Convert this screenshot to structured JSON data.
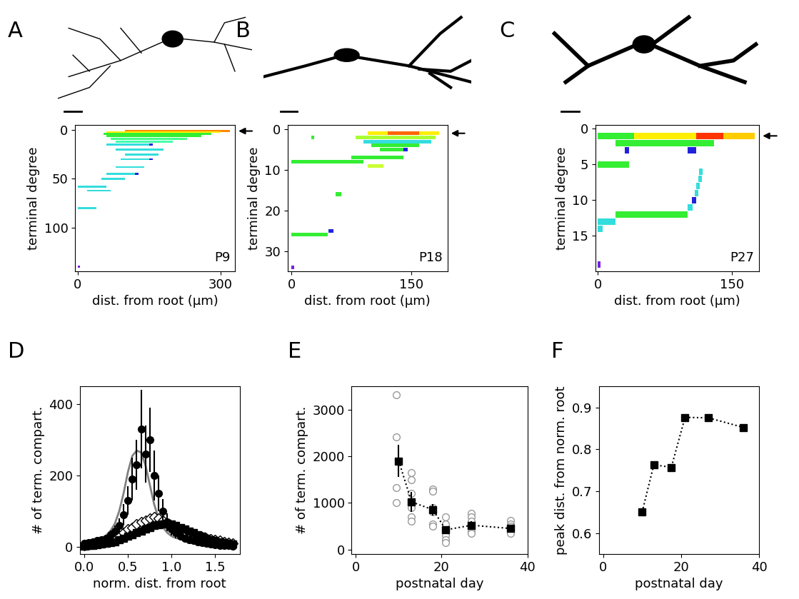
{
  "chart_data": [
    {
      "type": "segments",
      "title": "A",
      "annotations": [
        "P9"
      ],
      "x_label": "dist. from root (μm)",
      "y_label": "terminal degree",
      "xlim": [
        -5,
        330
      ],
      "ylim": [
        145,
        -5
      ],
      "xticks": [
        0,
        300
      ],
      "yticks": [
        0,
        50,
        100
      ],
      "segments": [
        {
          "y": 1,
          "x": [
            100,
            320
          ],
          "color": "#ff8800"
        },
        {
          "y": 2,
          "x": [
            60,
            300
          ],
          "color": "#ffee00"
        },
        {
          "y": 4,
          "x": [
            55,
            280
          ],
          "color": "#33ee33"
        },
        {
          "y": 6,
          "x": [
            60,
            260
          ],
          "color": "#33ee33"
        },
        {
          "y": 9,
          "x": [
            70,
            230
          ],
          "color": "#44ff88"
        },
        {
          "y": 12,
          "x": [
            80,
            200
          ],
          "color": "#44ffaa"
        },
        {
          "y": 15,
          "x": [
            60,
            150
          ],
          "color": "#33dddd"
        },
        {
          "y": 15,
          "x": [
            150,
            158
          ],
          "color": "#2222dd"
        },
        {
          "y": 20,
          "x": [
            80,
            180
          ],
          "color": "#33dddd"
        },
        {
          "y": 25,
          "x": [
            100,
            170
          ],
          "color": "#33dddd"
        },
        {
          "y": 30,
          "x": [
            90,
            150
          ],
          "color": "#33dddd"
        },
        {
          "y": 30,
          "x": [
            150,
            158
          ],
          "color": "#2222dd"
        },
        {
          "y": 38,
          "x": [
            80,
            140
          ],
          "color": "#33dddd"
        },
        {
          "y": 45,
          "x": [
            60,
            120
          ],
          "color": "#33dddd"
        },
        {
          "y": 45,
          "x": [
            120,
            128
          ],
          "color": "#2222dd"
        },
        {
          "y": 50,
          "x": [
            50,
            100
          ],
          "color": "#33dddd"
        },
        {
          "y": 58,
          "x": [
            0,
            60
          ],
          "color": "#33dddd"
        },
        {
          "y": 62,
          "x": [
            20,
            70
          ],
          "color": "#33dddd"
        },
        {
          "y": 80,
          "x": [
            0,
            40
          ],
          "color": "#33dddd"
        },
        {
          "y": 140,
          "x": [
            0,
            5
          ],
          "color": "#7722dd"
        }
      ]
    },
    {
      "type": "segments",
      "title": "B",
      "annotations": [
        "P18"
      ],
      "x_label": "dist. from root (μm)",
      "y_label": "terminal degree",
      "xlim": [
        -5,
        195
      ],
      "ylim": [
        35,
        -1
      ],
      "xticks": [
        0,
        150
      ],
      "yticks": [
        0,
        10,
        20,
        30
      ],
      "segments": [
        {
          "y": 1,
          "x": [
            95,
            120
          ],
          "color": "#ffee00"
        },
        {
          "y": 1,
          "x": [
            120,
            160
          ],
          "color": "#ff6600"
        },
        {
          "y": 1,
          "x": [
            160,
            185
          ],
          "color": "#ffee00"
        },
        {
          "y": 2,
          "x": [
            80,
            180
          ],
          "color": "#aaff33"
        },
        {
          "y": 2,
          "x": [
            25,
            28
          ],
          "color": "#33ee33"
        },
        {
          "y": 3,
          "x": [
            90,
            175
          ],
          "color": "#33dddd"
        },
        {
          "y": 4,
          "x": [
            100,
            160
          ],
          "color": "#33ee33"
        },
        {
          "y": 5,
          "x": [
            110,
            140
          ],
          "color": "#33ee33"
        },
        {
          "y": 5,
          "x": [
            140,
            145
          ],
          "color": "#2222dd"
        },
        {
          "y": 7,
          "x": [
            75,
            140
          ],
          "color": "#33ee33"
        },
        {
          "y": 8,
          "x": [
            0,
            90
          ],
          "color": "#33ee33"
        },
        {
          "y": 9,
          "x": [
            95,
            115
          ],
          "color": "#ccff33"
        },
        {
          "y": 16,
          "x": [
            55,
            62
          ],
          "color": "#33ee33"
        },
        {
          "y": 26,
          "x": [
            0,
            45
          ],
          "color": "#33ee33"
        },
        {
          "y": 25,
          "x": [
            46,
            52
          ],
          "color": "#2222dd"
        },
        {
          "y": 34,
          "x": [
            0,
            3
          ],
          "color": "#7722dd"
        }
      ]
    },
    {
      "type": "segments",
      "title": "C",
      "annotations": [
        "P27"
      ],
      "x_label": "dist. from root (μm)",
      "y_label": "terminal degree",
      "xlim": [
        -3,
        180
      ],
      "ylim": [
        20,
        -0.5
      ],
      "xticks": [
        0,
        150
      ],
      "yticks": [
        0,
        5,
        10,
        15
      ],
      "segments": [
        {
          "y": 1,
          "x": [
            0,
            40
          ],
          "color": "#33ee33"
        },
        {
          "y": 1,
          "x": [
            40,
            110
          ],
          "color": "#ffee00"
        },
        {
          "y": 1,
          "x": [
            110,
            140
          ],
          "color": "#ff3300"
        },
        {
          "y": 1,
          "x": [
            140,
            175
          ],
          "color": "#ffcc00"
        },
        {
          "y": 2,
          "x": [
            20,
            130
          ],
          "color": "#33ee33"
        },
        {
          "y": 3,
          "x": [
            30,
            35
          ],
          "color": "#2222dd"
        },
        {
          "y": 3,
          "x": [
            100,
            110
          ],
          "color": "#2222dd"
        },
        {
          "y": 5,
          "x": [
            0,
            35
          ],
          "color": "#33ee33"
        },
        {
          "y": 6,
          "x": [
            113,
            117
          ],
          "color": "#33dddd"
        },
        {
          "y": 7,
          "x": [
            112,
            116
          ],
          "color": "#33dddd"
        },
        {
          "y": 8,
          "x": [
            110,
            114
          ],
          "color": "#33dddd"
        },
        {
          "y": 9,
          "x": [
            108,
            112
          ],
          "color": "#33dddd"
        },
        {
          "y": 10,
          "x": [
            105,
            110
          ],
          "color": "#2222dd"
        },
        {
          "y": 11,
          "x": [
            100,
            106
          ],
          "color": "#33dddd"
        },
        {
          "y": 12,
          "x": [
            20,
            100
          ],
          "color": "#33ee33"
        },
        {
          "y": 13,
          "x": [
            0,
            20
          ],
          "color": "#33dddd"
        },
        {
          "y": 14,
          "x": [
            0,
            5
          ],
          "color": "#33dddd"
        },
        {
          "y": 19,
          "x": [
            0,
            3
          ],
          "color": "#7722dd"
        }
      ]
    },
    {
      "type": "scatter",
      "title": "D",
      "x_label": "norm. dist. from root",
      "y_label": "# of term. compart.",
      "xlim": [
        -0.05,
        1.78
      ],
      "ylim": [
        -20,
        450
      ],
      "xticks": [
        {
          "value": 0,
          "label": "0.0"
        },
        {
          "value": 0.5,
          "label": "0.5"
        },
        {
          "value": 1.0,
          "label": "1.0"
        },
        {
          "value": 1.5,
          "label": "1.5"
        }
      ],
      "yticks": [
        0,
        200,
        400
      ],
      "x": [
        0,
        0.05,
        0.1,
        0.15,
        0.2,
        0.25,
        0.3,
        0.35,
        0.4,
        0.45,
        0.5,
        0.55,
        0.6,
        0.65,
        0.7,
        0.75,
        0.8,
        0.85,
        0.9,
        0.95,
        1.0,
        1.05,
        1.1,
        1.15,
        1.2,
        1.25,
        1.3,
        1.35,
        1.4,
        1.45,
        1.5,
        1.55,
        1.6,
        1.65,
        1.7
      ],
      "series": [
        {
          "type": "line",
          "color": "#808080",
          "values": [
            12,
            14,
            16,
            20,
            25,
            32,
            45,
            65,
            100,
            150,
            210,
            255,
            270,
            265,
            230,
            175,
            120,
            80,
            55,
            40,
            30,
            25,
            22,
            20,
            19,
            18,
            18,
            17,
            17,
            17,
            17,
            17,
            17,
            17,
            17
          ]
        },
        {
          "type": "line",
          "color": "#808080",
          "values": [
            10,
            12,
            14,
            17,
            20,
            24,
            28,
            33,
            38,
            44,
            50,
            56,
            62,
            67,
            71,
            74,
            75,
            74,
            72,
            68,
            63,
            57,
            51,
            45,
            39,
            34,
            30,
            26,
            23,
            21,
            19,
            18,
            17,
            16,
            16
          ]
        },
        {
          "type": "line",
          "color": "#808080",
          "values": [
            15,
            16,
            18,
            20,
            22,
            25,
            28,
            32,
            36,
            40,
            45,
            50,
            54,
            58,
            61,
            63,
            64,
            63,
            61,
            58,
            54,
            50,
            45,
            40,
            36,
            32,
            28,
            25,
            23,
            21,
            20,
            19,
            18,
            18,
            17
          ]
        },
        {
          "type": "scatter",
          "marker": "open_diamond",
          "color": "#000000",
          "values": [
            5,
            6,
            8,
            10,
            12,
            15,
            20,
            25,
            30,
            40,
            50,
            55,
            65,
            70,
            75,
            80,
            85,
            80,
            75,
            65,
            60,
            55,
            50,
            45,
            40,
            35,
            30,
            28,
            25,
            22,
            20,
            18,
            15,
            12,
            10
          ]
        },
        {
          "type": "scatter",
          "marker": "square",
          "color": "#000000",
          "values": [
            3,
            4,
            5,
            6,
            8,
            10,
            12,
            15,
            20,
            25,
            30,
            35,
            40,
            45,
            50,
            55,
            60,
            62,
            65,
            67,
            65,
            60,
            55,
            50,
            45,
            40,
            35,
            30,
            25,
            20,
            18,
            15,
            12,
            10,
            8
          ]
        },
        {
          "type": "scatter",
          "marker": "circle",
          "color": "#000000",
          "values": [
            10,
            12,
            15,
            18,
            20,
            25,
            35,
            45,
            60,
            90,
            130,
            190,
            230,
            330,
            260,
            300,
            200,
            150,
            100,
            70,
            50,
            40,
            30,
            25,
            20,
            18,
            15,
            12,
            10,
            8,
            6,
            5,
            5,
            4,
            3
          ],
          "error": [
            5,
            5,
            6,
            6,
            8,
            10,
            12,
            15,
            20,
            30,
            40,
            60,
            70,
            110,
            80,
            90,
            70,
            50,
            35,
            25,
            18,
            15,
            12,
            10,
            8,
            7,
            6,
            5,
            5,
            4,
            3,
            3,
            3,
            2,
            2
          ]
        }
      ]
    },
    {
      "type": "scatter",
      "title": "E",
      "x_label": "postnatal day",
      "y_label": "# of term. compart.",
      "xlim": [
        -1,
        40
      ],
      "ylim": [
        -100,
        3500
      ],
      "xticks": [
        0,
        20,
        40
      ],
      "yticks": [
        0,
        1000,
        2000,
        3000
      ],
      "series": [
        {
          "type": "scatter",
          "marker": "open_circle",
          "color": "#999999",
          "x": [
            9.5,
            9.5,
            9.5,
            9.5,
            13,
            13,
            13,
            13,
            13,
            13,
            13,
            18,
            18,
            18,
            18,
            18,
            18,
            21,
            21,
            21,
            21,
            21,
            21,
            27,
            27,
            27,
            27,
            27,
            27,
            36,
            36,
            36,
            36,
            36,
            36
          ],
          "values": [
            3320,
            2420,
            1330,
            1000,
            1650,
            1500,
            1200,
            1000,
            900,
            700,
            600,
            1300,
            1250,
            900,
            800,
            550,
            500,
            700,
            550,
            400,
            300,
            200,
            150,
            780,
            700,
            600,
            500,
            400,
            350,
            620,
            550,
            500,
            450,
            400,
            350
          ]
        },
        {
          "type": "line",
          "marker": "square",
          "line_style": "dotted",
          "color": "#000000",
          "x": [
            10,
            13,
            18,
            21,
            27,
            36
          ],
          "values": [
            1900,
            1020,
            850,
            420,
            520,
            450
          ],
          "error": [
            350,
            220,
            120,
            60,
            80,
            50
          ]
        }
      ]
    },
    {
      "type": "line",
      "title": "F",
      "x_label": "postnatal day",
      "y_label": "peak dist. from norm. root",
      "xlim": [
        -1,
        40
      ],
      "ylim": [
        0.55,
        0.95
      ],
      "xticks": [
        0,
        20,
        40
      ],
      "yticks": [
        0.6,
        0.7,
        0.8,
        0.9
      ],
      "series": [
        {
          "type": "line",
          "marker": "square",
          "line_style": "dotted",
          "color": "#000000",
          "x": [
            10,
            13,
            17.5,
            21,
            27,
            36
          ],
          "values": [
            0.65,
            0.763,
            0.757,
            0.876,
            0.875,
            0.852
          ]
        }
      ]
    }
  ]
}
